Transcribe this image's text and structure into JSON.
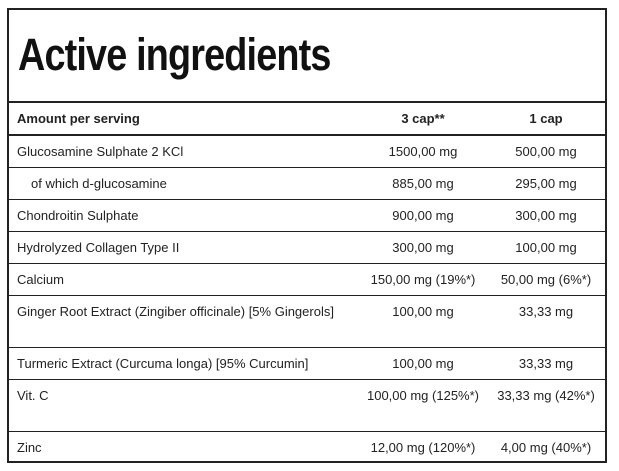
{
  "title": "Active ingredients",
  "table": {
    "headers": [
      "Amount per serving",
      "3 cap**",
      "1 cap"
    ],
    "rows": [
      {
        "name": "Glucosamine Sulphate 2 KCl",
        "three_cap": "1500,00 mg",
        "one_cap": "500,00 mg"
      },
      {
        "name": "of which d-glucosamine",
        "three_cap": "885,00 mg",
        "one_cap": "295,00 mg"
      },
      {
        "name": "Chondroitin Sulphate",
        "three_cap": "900,00 mg",
        "one_cap": "300,00 mg"
      },
      {
        "name": "Hydrolyzed Collagen Type II",
        "three_cap": "300,00 mg",
        "one_cap": "100,00 mg"
      },
      {
        "name": "Calcium",
        "three_cap": "150,00 mg (19%*)",
        "one_cap": "50,00 mg (6%*)"
      },
      {
        "name": "Ginger Root Extract (Zingiber officinale) [5% Gingerols]",
        "three_cap": "100,00 mg",
        "one_cap": "33,33 mg"
      },
      {
        "name": "Turmeric Extract (Curcuma longa) [95% Curcumin]",
        "three_cap": "100,00 mg",
        "one_cap": "33,33 mg"
      },
      {
        "name": "Vit. C",
        "three_cap": "100,00 mg (125%*)",
        "one_cap": "33,33 mg (42%*)"
      },
      {
        "name": "Zinc",
        "three_cap": "12,00 mg (120%*)",
        "one_cap": "4,00 mg (40%*)"
      }
    ]
  }
}
